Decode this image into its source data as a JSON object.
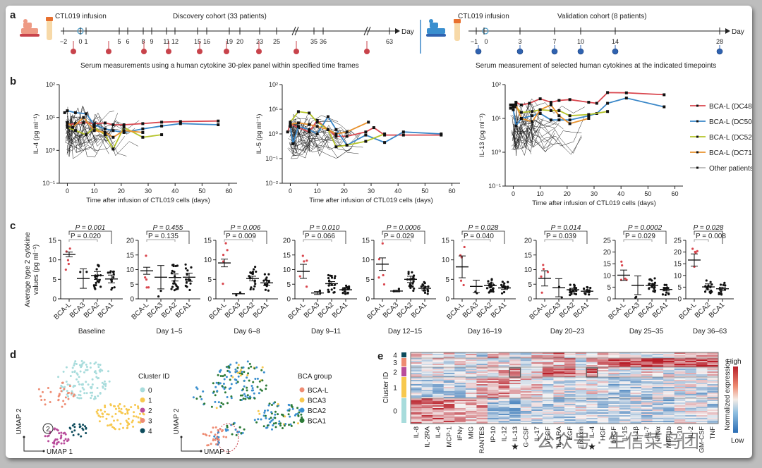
{
  "panel_labels": {
    "a": "a",
    "b": "b",
    "c": "c",
    "d": "d",
    "e": "e"
  },
  "panel_a": {
    "discovery": {
      "infusion_label": "CTL019 infusion",
      "title": "Discovery cohort (33 patients)",
      "ticks": [
        "−2",
        "0",
        "1",
        "5",
        "6",
        "8",
        "9",
        "11",
        "12",
        "15",
        "16",
        "19",
        "20",
        "23",
        "25",
        "35",
        "36",
        "63"
      ],
      "axis_end_label": "Day",
      "caption": "Serum measurements using a human cytokine 30-plex panel within specified time frames",
      "marker_color": "#c8434b",
      "sample_count": 10
    },
    "validation": {
      "infusion_label": "CTL019 infusion",
      "title": "Validation cohort (8 patients)",
      "ticks": [
        "−1",
        "0",
        "3",
        "7",
        "10",
        "14",
        "28"
      ],
      "sample_days": [
        "−1",
        "3",
        "7",
        "10",
        "14",
        "28"
      ],
      "axis_end_label": "Day",
      "caption": "Serum measurement of selected human cytokines at the indicated timepoints",
      "marker_color": "#2f62b0"
    }
  },
  "chart_data": [
    {
      "id": "b1",
      "type": "line",
      "ylabel": "IL-4 (pg ml⁻¹)",
      "xlabel": "Time after infusion of CTL019 cells (days)",
      "yscale": "log",
      "ylim": [
        0.1,
        100
      ],
      "xlim": [
        -3,
        63
      ],
      "xticks": [
        "0",
        "10",
        "20",
        "30",
        "40",
        "50",
        "60"
      ],
      "yticks": [
        "10⁻¹",
        "10⁰",
        "10¹",
        "10²"
      ],
      "series": [
        {
          "name": "BCA-L (DC48)",
          "color": "#d9464e",
          "x": [
            0,
            3,
            6,
            10,
            14,
            17,
            21,
            28,
            35,
            42,
            56
          ],
          "y": [
            6,
            6.5,
            7,
            6.5,
            6.8,
            6,
            6,
            6.5,
            7.2,
            7.5,
            7.8
          ]
        },
        {
          "name": "BCA-L (DC50)",
          "color": "#3a87c8",
          "x": [
            -1,
            0,
            3,
            7,
            10,
            14,
            17,
            21,
            28,
            35,
            42,
            56
          ],
          "y": [
            14,
            16,
            14,
            13,
            6,
            4.5,
            4,
            3.5,
            4.5,
            5.5,
            6.5,
            6
          ]
        },
        {
          "name": "BCA-L (DC52)",
          "color": "#b5c42a",
          "x": [
            0,
            3,
            7,
            10,
            14,
            17,
            21,
            28,
            35
          ],
          "y": [
            5,
            4,
            3,
            5,
            3,
            1.1,
            5,
            2.5,
            3
          ]
        },
        {
          "name": "BCA-L (DC71)",
          "color": "#e8922e",
          "x": [
            0,
            2,
            6,
            10,
            14,
            17,
            21,
            28
          ],
          "y": [
            7,
            5,
            10,
            4,
            3.5,
            2.5,
            4,
            3.5
          ]
        }
      ]
    },
    {
      "id": "b2",
      "type": "line",
      "ylabel": "IL-5 (pg ml⁻¹)",
      "xlabel": "Time after infusion of CTL019 cells (days)",
      "yscale": "log",
      "ylim": [
        0.01,
        100
      ],
      "xlim": [
        -3,
        63
      ],
      "xticks": [
        "0",
        "10",
        "20",
        "30",
        "40",
        "50",
        "60"
      ],
      "yticks": [
        "10⁻²",
        "10⁻¹",
        "10⁰",
        "10¹",
        "10²"
      ],
      "series": [
        {
          "name": "BCA-L (DC48)",
          "color": "#d9464e",
          "x": [
            -1,
            0,
            3,
            7,
            10,
            14,
            17,
            21,
            28,
            31,
            35,
            42,
            56
          ],
          "y": [
            1.2,
            2.5,
            1.8,
            1.2,
            3.5,
            1.5,
            0.8,
            0.8,
            1.2,
            1.8,
            0.9,
            0.9,
            0.9
          ]
        },
        {
          "name": "BCA-L (DC50)",
          "color": "#3a87c8",
          "x": [
            0,
            1,
            3,
            7,
            10,
            14,
            17,
            21,
            28,
            35,
            42,
            56
          ],
          "y": [
            2,
            0.4,
            2,
            1.5,
            1,
            5,
            1.5,
            0.35,
            0.9,
            0.45,
            1.2,
            1
          ]
        },
        {
          "name": "BCA-L (DC52)",
          "color": "#b5c42a",
          "x": [
            0,
            3,
            7,
            10,
            14,
            17,
            21,
            28,
            35
          ],
          "y": [
            3,
            8,
            7,
            3,
            1.5,
            0.3,
            0.35,
            0.5,
            1
          ]
        },
        {
          "name": "BCA-L (DC71)",
          "color": "#e8922e",
          "x": [
            0,
            3,
            7,
            10,
            14,
            17,
            21,
            29
          ],
          "y": [
            2.5,
            2.8,
            2.4,
            2,
            1.5,
            1,
            1.2,
            3
          ]
        }
      ]
    },
    {
      "id": "b3",
      "type": "line",
      "ylabel": "IL-13 (pg ml⁻¹)",
      "xlabel": "Time after infusion of CTL019 cells (days)",
      "yscale": "log",
      "ylim": [
        0.1,
        100
      ],
      "xlim": [
        -3,
        63
      ],
      "xticks": [
        "0",
        "10",
        "20",
        "30",
        "40",
        "50",
        "60"
      ],
      "yticks": [
        "10⁻¹",
        "10⁰",
        "10¹",
        "10²"
      ],
      "legend": [
        "BCA-L (DC48)",
        "BCA-L (DC50)",
        "BCA-L (DC52)",
        "BCA-L (DC71)",
        "Other patients"
      ],
      "legend_position": "right",
      "series": [
        {
          "name": "BCA-L (DC48)",
          "color": "#d9464e",
          "x": [
            -1,
            0,
            1,
            3,
            6,
            10,
            14,
            17,
            21,
            28,
            31,
            35,
            42,
            56
          ],
          "y": [
            25,
            22,
            30,
            25,
            28,
            38,
            30,
            34,
            36,
            30,
            28,
            58,
            57,
            50
          ]
        },
        {
          "name": "BCA-L (DC50)",
          "color": "#3a87c8",
          "x": [
            -1,
            0,
            1,
            3,
            7,
            10,
            14,
            17,
            21,
            28,
            31,
            35,
            42,
            56
          ],
          "y": [
            20,
            18,
            6,
            10,
            12,
            14,
            9,
            9,
            9,
            12,
            14,
            28,
            40,
            22
          ]
        },
        {
          "name": "BCA-L (DC52)",
          "color": "#b5c42a",
          "x": [
            0,
            1,
            3,
            7,
            10,
            14,
            17,
            21,
            28,
            35
          ],
          "y": [
            25,
            22,
            15,
            16,
            18,
            17,
            17,
            12,
            13,
            16
          ]
        },
        {
          "name": "BCA-L (DC71)",
          "color": "#e8922e",
          "x": [
            0,
            1,
            3,
            7,
            10,
            14,
            17,
            21,
            28
          ],
          "y": [
            22,
            25,
            10,
            8,
            18,
            25,
            12,
            7,
            10
          ]
        }
      ]
    },
    {
      "id": "c",
      "type": "scatter",
      "ylabel": "Average type 2 cytokine values (pg ml⁻¹)",
      "panels": [
        {
          "title": "Baseline",
          "groups": [
            "BCA-L",
            "BCA3",
            "BCA2",
            "BCA1"
          ],
          "ymax": 15,
          "yticks": [
            0,
            5,
            10,
            15
          ],
          "means": [
            11.4,
            5.2,
            6,
            5.1
          ],
          "sem": [
            0.6,
            2.5,
            1,
            1
          ],
          "p_top": "P = 0.001",
          "p_bot": "P = 0.020",
          "p_bot_to": 2,
          "p_top_to": 3
        },
        {
          "title": "Day 1–5",
          "groups": [
            "BCA-L",
            "BCA3",
            "BCA2",
            "BCA1"
          ],
          "ymax": 20,
          "yticks": [
            0,
            5,
            10,
            15,
            20
          ],
          "means": [
            9.6,
            7.4,
            7.3,
            7.4
          ],
          "sem": [
            1.2,
            4,
            1.2,
            1.4
          ],
          "p_top": "P = 0.455",
          "p_bot": "P = 0.135",
          "p_bot_to": 2,
          "p_top_to": 3
        },
        {
          "title": "Day 6–8",
          "groups": [
            "BCA-L",
            "BCA3",
            "BCA2",
            "BCA1"
          ],
          "ymax": 15,
          "yticks": [
            0,
            5,
            10,
            15
          ],
          "means": [
            9.2,
            1.3,
            5.2,
            4.1
          ],
          "sem": [
            1,
            0,
            0.6,
            0.7
          ],
          "p_top": "P = 0.006",
          "p_bot": "P = 0.009",
          "p_bot_to": 2,
          "p_top_to": 3
        },
        {
          "title": "Day 9–11",
          "groups": [
            "BCA-L",
            "BCA3",
            "BCA2",
            "BCA1"
          ],
          "ymax": 20,
          "yticks": [
            0,
            5,
            10,
            15,
            20
          ],
          "means": [
            9.4,
            2,
            5.2,
            3.1
          ],
          "sem": [
            2.4,
            0.5,
            0.7,
            0.8
          ],
          "p_top": "P = 0.010",
          "p_bot": "P = 0.066",
          "p_bot_to": 2,
          "p_top_to": 3
        },
        {
          "title": "Day 12–15",
          "groups": [
            "BCA-L",
            "BCA3",
            "BCA2",
            "BCA1"
          ],
          "ymax": 15,
          "yticks": [
            0,
            5,
            10,
            15
          ],
          "means": [
            8.9,
            2,
            5,
            2.7
          ],
          "sem": [
            1.6,
            0.2,
            0.8,
            0.4
          ],
          "p_top": "P = 0.0006",
          "p_bot": "P = 0.029",
          "p_bot_to": 2,
          "p_top_to": 3
        },
        {
          "title": "Day 16–19",
          "groups": [
            "BCA-L",
            "BCA3",
            "BCA2",
            "BCA1"
          ],
          "ymax": 15,
          "yticks": [
            0,
            5,
            10,
            15
          ],
          "means": [
            8.2,
            3.2,
            3.4,
            2.8
          ],
          "sem": [
            2.8,
            1.6,
            0.6,
            0.4
          ],
          "p_top": "P = 0.028",
          "p_bot": "P = 0.040",
          "p_bot_to": 2,
          "p_top_to": 3
        },
        {
          "title": "Day 20–23",
          "groups": [
            "BCA-L",
            "BCA3",
            "BCA2",
            "BCA1"
          ],
          "ymax": 20,
          "yticks": [
            0,
            5,
            10,
            15,
            20
          ],
          "means": [
            7,
            3.8,
            3.1,
            2.6
          ],
          "sem": [
            2.6,
            3.1,
            0.5,
            0.4
          ],
          "p_top": "P = 0.014",
          "p_bot": "P = 0.039",
          "p_bot_to": 2,
          "p_top_to": 3
        },
        {
          "title": "Day 25–35",
          "groups": [
            "BCA-L",
            "BCA3",
            "BCA2",
            "BCA1"
          ],
          "ymax": 25,
          "yticks": [
            0,
            5,
            10,
            15,
            20,
            25
          ],
          "means": [
            10.1,
            5.8,
            5.7,
            4
          ],
          "sem": [
            2.2,
            4,
            0.8,
            0.6
          ],
          "p_top": "P = 0.0002",
          "p_bot": "P = 0.029",
          "p_bot_to": 2,
          "p_top_to": 3
        },
        {
          "title": "Day 36–63",
          "groups": [
            "BCA-L",
            "BCA2",
            "BCA1"
          ],
          "ymax": 25,
          "yticks": [
            0,
            5,
            10,
            15,
            20,
            25
          ],
          "means": [
            16.6,
            5.1,
            4.3
          ],
          "sem": [
            2.6,
            1.3,
            0.7
          ],
          "p_top": "P = 0.028",
          "p_bot": "P = 0.008",
          "p_bot_to": 1,
          "p_top_to": 2
        }
      ],
      "highlight_color": "#d9464e"
    },
    {
      "id": "d",
      "type": "scatter",
      "umap_left": {
        "legend_title": "Cluster ID",
        "legend": [
          {
            "label": "0",
            "color": "#a8dcdc"
          },
          {
            "label": "1",
            "color": "#f7c84e"
          },
          {
            "label": "2",
            "color": "#b94c9b"
          },
          {
            "label": "3",
            "color": "#ee8c73"
          },
          {
            "label": "4",
            "color": "#0d4b5c"
          }
        ],
        "annotation": "2"
      },
      "umap_right": {
        "legend_title": "BCA group",
        "legend": [
          {
            "label": "BCA-L",
            "color": "#ee8c73"
          },
          {
            "label": "BCA3",
            "color": "#f7c84e"
          },
          {
            "label": "BCA2",
            "color": "#3a8fcf"
          },
          {
            "label": "BCA1",
            "color": "#2c7a37"
          }
        ]
      },
      "xlabel": "UMAP 1",
      "ylabel": "UMAP 2"
    },
    {
      "id": "e",
      "type": "heatmap",
      "ylabel": "Cluster ID",
      "clusters": [
        {
          "label": "4",
          "color": "#0d4b5c"
        },
        {
          "label": "3",
          "color": "#ee8c73"
        },
        {
          "label": "2",
          "color": "#b94c9b"
        },
        {
          "label": "1",
          "color": "#f7c84e"
        },
        {
          "label": "0",
          "color": "#a8dcdc"
        }
      ],
      "columns": [
        "IL-8",
        "IL-2RA",
        "IL-6",
        "MCP-1",
        "IFNγ",
        "MIG",
        "RANTES",
        "IP-10",
        "IL-12",
        "IL-13",
        "G-CSF",
        "IL-17",
        "VEGF",
        "IL-1RA",
        "EGF",
        "Eotaxin",
        "IL-4",
        "HGF",
        "bFGF",
        "IL-15",
        "IL-1β",
        "IL-7",
        "IFNα",
        "MIP-1b",
        "IL-10",
        "IL-2",
        "GM-CSF",
        "TNF"
      ],
      "starred": [
        "IL-13",
        "IL-4"
      ],
      "colorbar_title": "Normalized expression",
      "colorbar_high": "High",
      "colorbar_low": "Low",
      "cluster_means": {
        "4": [
          0.1,
          0.1,
          0,
          0.1,
          0,
          0.2,
          -0.2,
          0.3,
          0.3,
          -0.1,
          -0.1,
          0.2,
          0.2,
          0.6,
          0.1,
          0.1,
          0.2,
          0.4,
          0,
          -0.1,
          -0.1,
          0,
          0,
          0.1,
          0.2,
          0.1,
          0.2,
          0.5
        ],
        "3": [
          0,
          0,
          0.1,
          0,
          0.1,
          -0.1,
          -0.1,
          0,
          0,
          0,
          -0.2,
          0.1,
          0.3,
          0.3,
          0.4,
          -0.1,
          0.2,
          0.5,
          0.9,
          0.9,
          0.8,
          0.7,
          0.8,
          0.7,
          0.8,
          0.8,
          0.7,
          0.8
        ],
        "2": [
          -0.1,
          -0.1,
          -0.1,
          -0.2,
          -0.1,
          0,
          0,
          0.1,
          0.3,
          0.6,
          0,
          0.1,
          0.8,
          0.7,
          0.6,
          0.1,
          0.5,
          0.2,
          0,
          -0.1,
          -0.1,
          0.1,
          0,
          -0.1,
          -0.1,
          -0.1,
          0,
          0.1
        ],
        "1": [
          -0.3,
          -0.3,
          -0.2,
          -0.2,
          -0.2,
          -0.1,
          0.2,
          0.4,
          0.4,
          0.3,
          0.2,
          0.1,
          -0.2,
          -0.1,
          -0.1,
          0,
          0.1,
          -0.1,
          -0.3,
          -0.3,
          -0.2,
          -0.2,
          -0.2,
          -0.2,
          -0.1,
          -0.1,
          -0.2,
          -0.2
        ],
        "0": [
          0.5,
          0.5,
          0.5,
          0.5,
          0.4,
          0.3,
          0.4,
          -0.3,
          -0.3,
          -0.4,
          -0.2,
          -0.2,
          -0.2,
          -0.2,
          -0.2,
          -0.1,
          -0.2,
          -0.2,
          -0.2,
          -0.2,
          -0.2,
          -0.2,
          -0.2,
          -0.3,
          -0.1,
          -0.1,
          0,
          -0.2
        ]
      }
    }
  ],
  "legend_other_label": "Other patients",
  "watermark": "公众号 · 生信菜鸟团"
}
